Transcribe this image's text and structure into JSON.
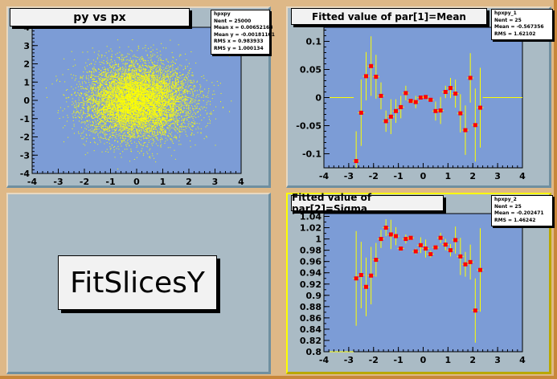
{
  "colors": {
    "canvas": "#deb887",
    "pad": "#aabbc5",
    "frame": "#7c9cd6",
    "markers": "#ff0000",
    "errors": "#ffff00",
    "scatter": "#ffff00",
    "selected_pad": "#ffff00"
  },
  "pads": [
    {
      "title": "py vs px",
      "stats": {
        "name": "hpxpy",
        "lines": [
          "Nent = 25000",
          "Mean x = 0.00652168",
          "Mean y = -0.00181101",
          "RMS x = 0.983933",
          "RMS y = 1.000134"
        ]
      }
    },
    {
      "title": "Fitted value of par[1]=Mean",
      "stats": {
        "name": "hpxpy_1",
        "lines": [
          "Nent = 25",
          "Mean = -0.567356",
          "RMS = 1.62102"
        ]
      }
    },
    {
      "label": "FitSlicesY"
    },
    {
      "title": "Fitted value of par[2]=Sigma",
      "stats": {
        "name": "hpxpy_2",
        "lines": [
          "Nent = 25",
          "Mean = -0.202471",
          "RMS = 1.46242"
        ]
      }
    }
  ],
  "chart_data": [
    {
      "type": "scatter",
      "title": "py vs px",
      "xlim": [
        -4,
        4
      ],
      "ylim": [
        -4,
        4
      ],
      "xticks": [
        "-4",
        "-3",
        "-2",
        "-1",
        "0",
        "1",
        "2",
        "3",
        "4"
      ],
      "yticks": [
        "-4",
        "-3",
        "-2",
        "-1",
        "0",
        "1",
        "2",
        "3",
        "4"
      ],
      "distribution": "2D gaussian, mean 0, sigma 1"
    },
    {
      "type": "scatter",
      "title": "Fitted value of par[1]=Mean",
      "xlim": [
        -4,
        4
      ],
      "ylim": [
        -0.125,
        0.125
      ],
      "xticks": [
        "-4",
        "-3",
        "-2",
        "-1",
        "0",
        "1",
        "2",
        "3",
        "4"
      ],
      "yticks": [
        "-0.1",
        "-0.05",
        "0",
        "0.05",
        "0.1"
      ],
      "x": [
        -2.7,
        -2.5,
        -2.3,
        -2.1,
        -1.9,
        -1.7,
        -1.5,
        -1.3,
        -1.1,
        -0.9,
        -0.7,
        -0.5,
        -0.3,
        -0.1,
        0.1,
        0.3,
        0.5,
        0.7,
        0.9,
        1.1,
        1.3,
        1.5,
        1.7,
        1.9,
        2.1,
        2.3
      ],
      "y": [
        -0.113,
        -0.027,
        0.038,
        0.056,
        0.037,
        0.003,
        -0.042,
        -0.034,
        -0.024,
        -0.017,
        0.008,
        -0.006,
        -0.008,
        0,
        0.001,
        -0.004,
        -0.024,
        -0.023,
        0.01,
        0.017,
        0.007,
        -0.028,
        -0.058,
        0.035,
        -0.049,
        -0.018
      ],
      "yerr": [
        0.053,
        0.059,
        0.043,
        0.053,
        0.039,
        0.024,
        0.019,
        0.031,
        0.021,
        0.02,
        0.013,
        0.004,
        0.011,
        0.003,
        0.003,
        0.003,
        0.017,
        0.024,
        0.011,
        0.018,
        0.025,
        0.034,
        0.044,
        0.044,
        0.065,
        0.071
      ]
    },
    {
      "type": "scatter",
      "title": "Fitted value of par[2]=Sigma",
      "xlim": [
        -4,
        4
      ],
      "ylim": [
        0.8,
        1.045
      ],
      "xticks": [
        "-4",
        "-3",
        "-2",
        "-1",
        "0",
        "1",
        "2",
        "3",
        "4"
      ],
      "yticks": [
        "0.8",
        "0.82",
        "0.84",
        "0.86",
        "0.88",
        "0.9",
        "0.92",
        "0.94",
        "0.96",
        "0.98",
        "1",
        "1.02",
        "1.04"
      ],
      "x": [
        -2.7,
        -2.5,
        -2.3,
        -2.1,
        -1.9,
        -1.7,
        -1.5,
        -1.3,
        -1.1,
        -0.9,
        -0.7,
        -0.5,
        -0.3,
        -0.1,
        0.1,
        0.3,
        0.5,
        0.7,
        0.9,
        1.1,
        1.3,
        1.5,
        1.7,
        1.9,
        2.1,
        2.3
      ],
      "y": [
        0.93,
        0.936,
        0.915,
        0.935,
        0.963,
        1.0,
        1.02,
        1.008,
        1.005,
        0.983,
        1.0,
        1.002,
        0.978,
        0.989,
        0.983,
        0.973,
        0.985,
        1.002,
        0.99,
        0.98,
        0.998,
        0.969,
        0.955,
        0.959,
        0.873,
        0.945
      ],
      "yerr": [
        0.084,
        0.059,
        0.052,
        0.051,
        0.03,
        0.016,
        0.015,
        0.026,
        0.016,
        0.004,
        0.008,
        0.004,
        0.005,
        0.014,
        0.016,
        0.006,
        0.004,
        0.009,
        0.01,
        0.011,
        0.024,
        0.033,
        0.022,
        0.031,
        0.057,
        0.074
      ]
    }
  ]
}
